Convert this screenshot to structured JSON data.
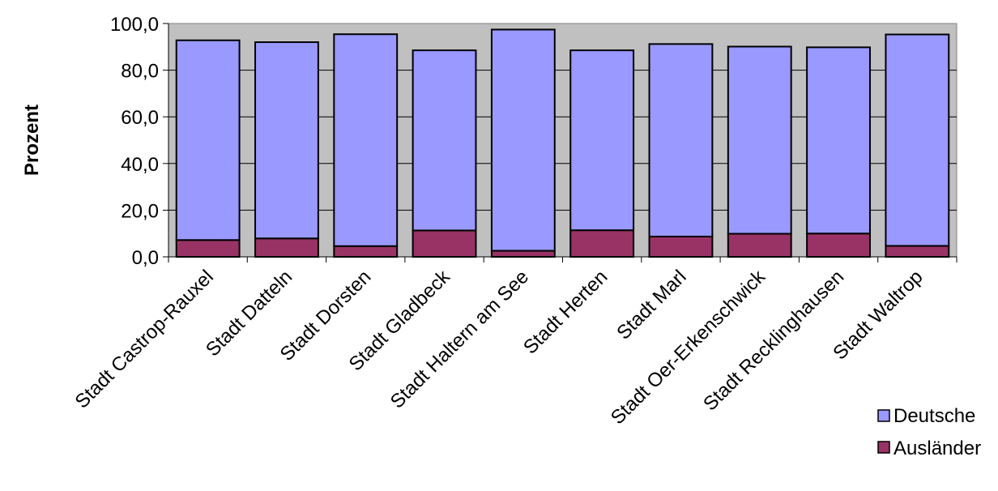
{
  "chart_data": {
    "type": "bar",
    "stacked": true,
    "categories": [
      "Stadt Castrop-Rauxel",
      "Stadt Datteln",
      "Stadt Dorsten",
      "Stadt Gladbeck",
      "Stadt Haltern am See",
      "Stadt Herten",
      "Stadt Marl",
      "Stadt Oer-Erkenschwick",
      "Stadt Recklinghausen",
      "Stadt Waltrop"
    ],
    "series": [
      {
        "name": "Ausländer",
        "color": "#993366",
        "values": [
          7.2,
          7.9,
          4.6,
          11.3,
          2.6,
          11.4,
          8.7,
          9.9,
          10.0,
          4.7
        ]
      },
      {
        "name": "Deutsche",
        "color": "#9999ff",
        "values": [
          85.6,
          84.1,
          90.8,
          77.2,
          94.8,
          77.1,
          82.5,
          80.2,
          79.8,
          90.6
        ]
      }
    ],
    "yticks": [
      "0,0",
      "20,0",
      "40,0",
      "60,0",
      "80,0",
      "100,0"
    ],
    "ylim": [
      0,
      100
    ],
    "ylabel": "Prozent",
    "xlabel": "",
    "title": "",
    "grid": true,
    "legend_position": "bottom-right",
    "legend": [
      "Deutsche",
      "Ausländer"
    ],
    "plot_background": "#c0c0c0"
  }
}
